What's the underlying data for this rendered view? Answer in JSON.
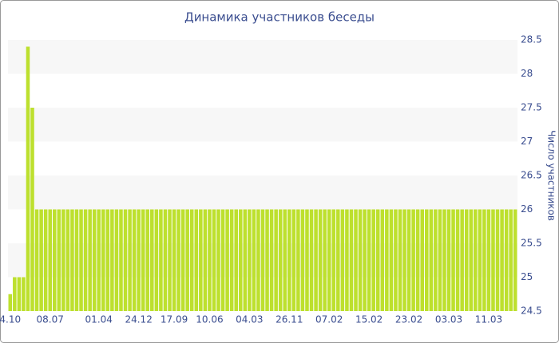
{
  "chart_data": {
    "type": "bar",
    "title": "Динамика участников беседы",
    "y_label": "Число участников",
    "categories": [
      "4.10",
      null,
      null,
      null,
      null,
      null,
      null,
      null,
      null,
      "08.07",
      null,
      null,
      null,
      null,
      null,
      null,
      null,
      null,
      null,
      null,
      "01.04",
      null,
      null,
      null,
      null,
      null,
      null,
      null,
      null,
      "24.12",
      null,
      null,
      null,
      null,
      null,
      null,
      null,
      "17.09",
      null,
      null,
      null,
      null,
      null,
      null,
      null,
      "10.06",
      null,
      null,
      null,
      null,
      null,
      null,
      null,
      null,
      "04.03",
      null,
      null,
      null,
      null,
      null,
      null,
      null,
      null,
      "26.11",
      null,
      null,
      null,
      null,
      null,
      null,
      null,
      null,
      "07.02",
      null,
      null,
      null,
      null,
      null,
      null,
      null,
      null,
      "15.02",
      null,
      null,
      null,
      null,
      null,
      null,
      null,
      null,
      "23.02",
      null,
      null,
      null,
      null,
      null,
      null,
      null,
      null,
      "03.03",
      null,
      null,
      null,
      null,
      null,
      null,
      null,
      null,
      "11.03",
      null,
      null,
      null,
      null,
      null,
      null
    ],
    "values": [
      24.75,
      25,
      25,
      25,
      28.4,
      27.5,
      26,
      26,
      26,
      26,
      26,
      26,
      26,
      26,
      26,
      26,
      26,
      26,
      26,
      26,
      26,
      26,
      26,
      26,
      26,
      26,
      26,
      26,
      26,
      26,
      26,
      26,
      26,
      26,
      26,
      26,
      26,
      26,
      26,
      26,
      26,
      26,
      26,
      26,
      26,
      26,
      26,
      26,
      26,
      26,
      26,
      26,
      26,
      26,
      26,
      26,
      26,
      26,
      26,
      26,
      26,
      26,
      26,
      26,
      26,
      26,
      26,
      26,
      26,
      26,
      26,
      26,
      26,
      26,
      26,
      26,
      26,
      26,
      26,
      26,
      26,
      26,
      26,
      26,
      26,
      26,
      26,
      26,
      26,
      26,
      26,
      26,
      26,
      26,
      26,
      26,
      26,
      26,
      26,
      26,
      26,
      26,
      26,
      26,
      26,
      26,
      26,
      26,
      26,
      26,
      26,
      26,
      26,
      26,
      26
    ],
    "color": "#bde02e",
    "ylim": [
      24.5,
      28.5
    ],
    "yticks": [
      24.5,
      25,
      25.5,
      26,
      26.5,
      27,
      27.5,
      28,
      28.5
    ],
    "grid": true
  }
}
